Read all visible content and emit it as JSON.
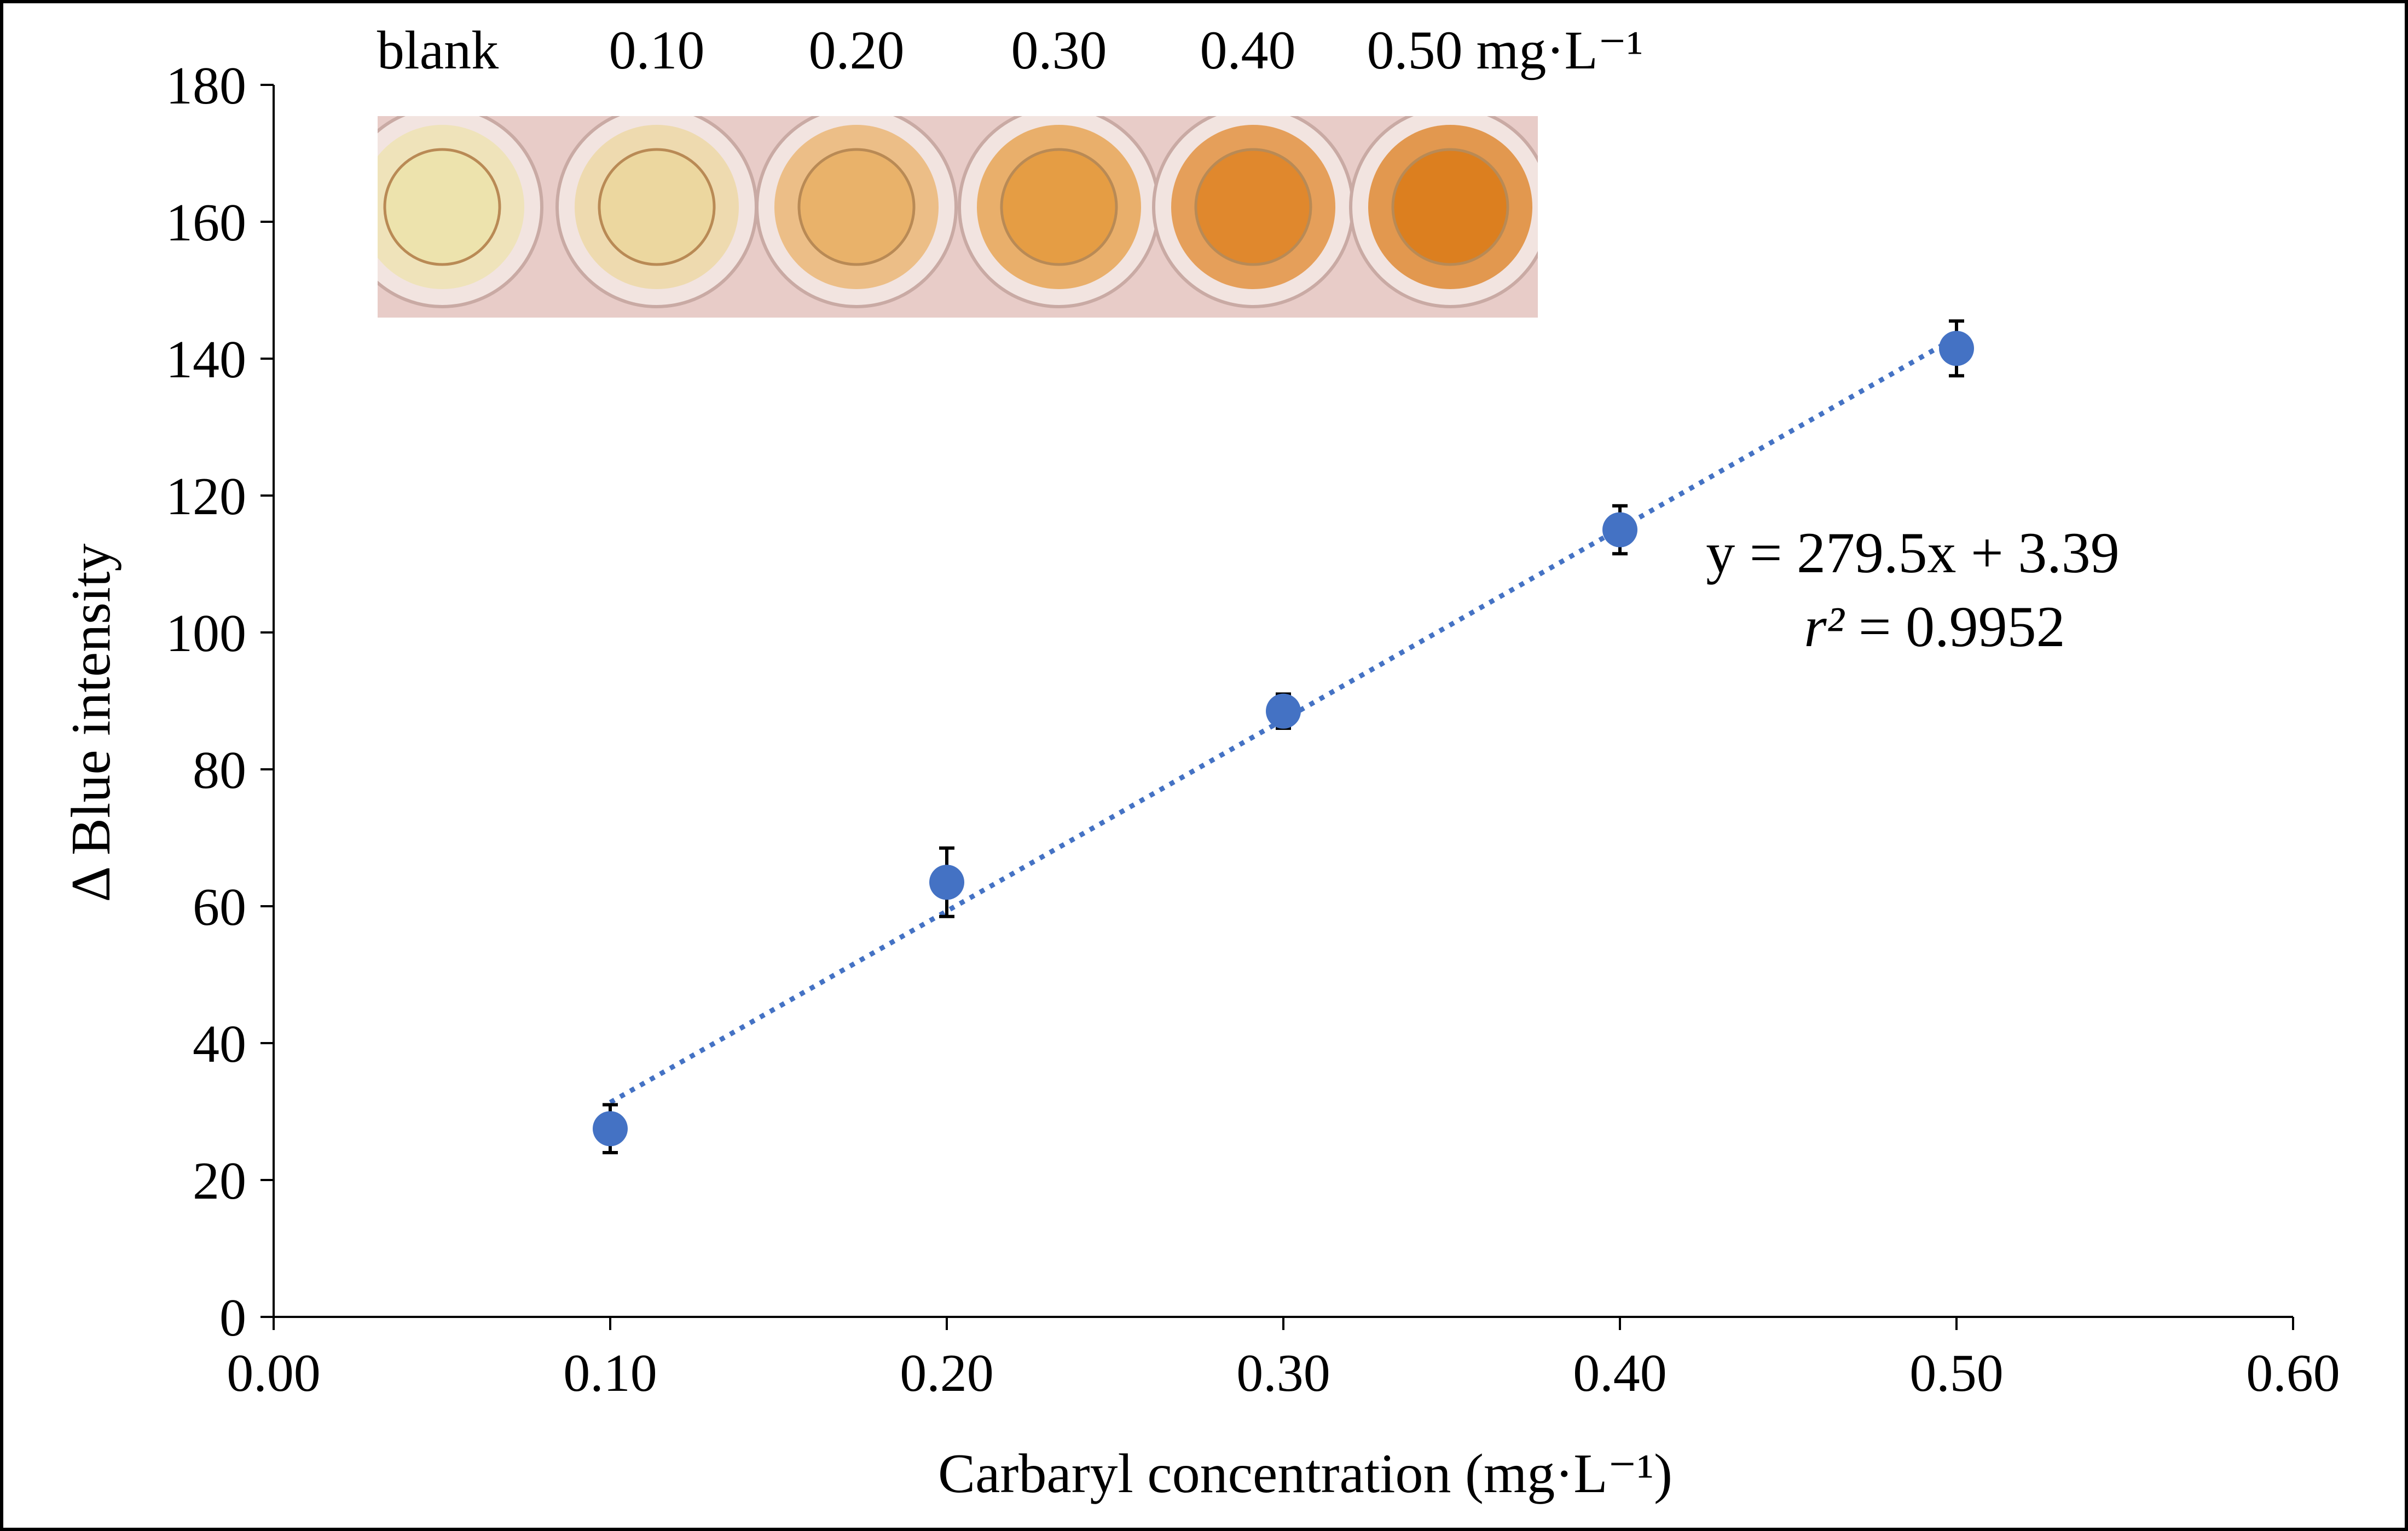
{
  "chart_data": {
    "type": "scatter",
    "xlabel": "Carbaryl concentration (mg·L⁻¹)",
    "ylabel": "Δ Blue intensity",
    "xlim": [
      0.0,
      0.6
    ],
    "ylim": [
      0,
      180
    ],
    "x_ticks": [
      0.0,
      0.1,
      0.2,
      0.3,
      0.4,
      0.5,
      0.6
    ],
    "x_tick_labels": [
      "0.00",
      "0.10",
      "0.20",
      "0.30",
      "0.40",
      "0.50",
      "0.60"
    ],
    "y_ticks": [
      0,
      20,
      40,
      60,
      80,
      100,
      120,
      140,
      160,
      180
    ],
    "y_tick_labels": [
      "0",
      "20",
      "40",
      "60",
      "80",
      "100",
      "120",
      "140",
      "160",
      "180"
    ],
    "grid": false,
    "series": [
      {
        "name": "Carbaryl",
        "x": [
          0.1,
          0.2,
          0.3,
          0.4,
          0.5
        ],
        "y": [
          27.5,
          63.5,
          88.5,
          115.0,
          141.5
        ],
        "error": [
          3.5,
          5.0,
          2.5,
          3.5,
          4.0
        ],
        "color": "#4472C4"
      }
    ],
    "trendline": {
      "type": "linear",
      "slope": 279.5,
      "intercept": 3.39,
      "x_range": [
        0.1,
        0.5
      ],
      "style": "dotted",
      "color": "#4472C4",
      "equation_label": "y = 279.5x + 3.39",
      "r2_label_symbol": "r²",
      "r2_label_value": " = 0.9952"
    },
    "inset": {
      "description_labels": [
        "blank",
        "0.10",
        "0.20",
        "0.30",
        "0.40",
        "0.50 mg·L⁻¹"
      ],
      "well_colors": [
        "#ede3ad",
        "#ecd79f",
        "#e9b26a",
        "#e59d44",
        "#e0882d",
        "#dc7f1f"
      ]
    }
  }
}
